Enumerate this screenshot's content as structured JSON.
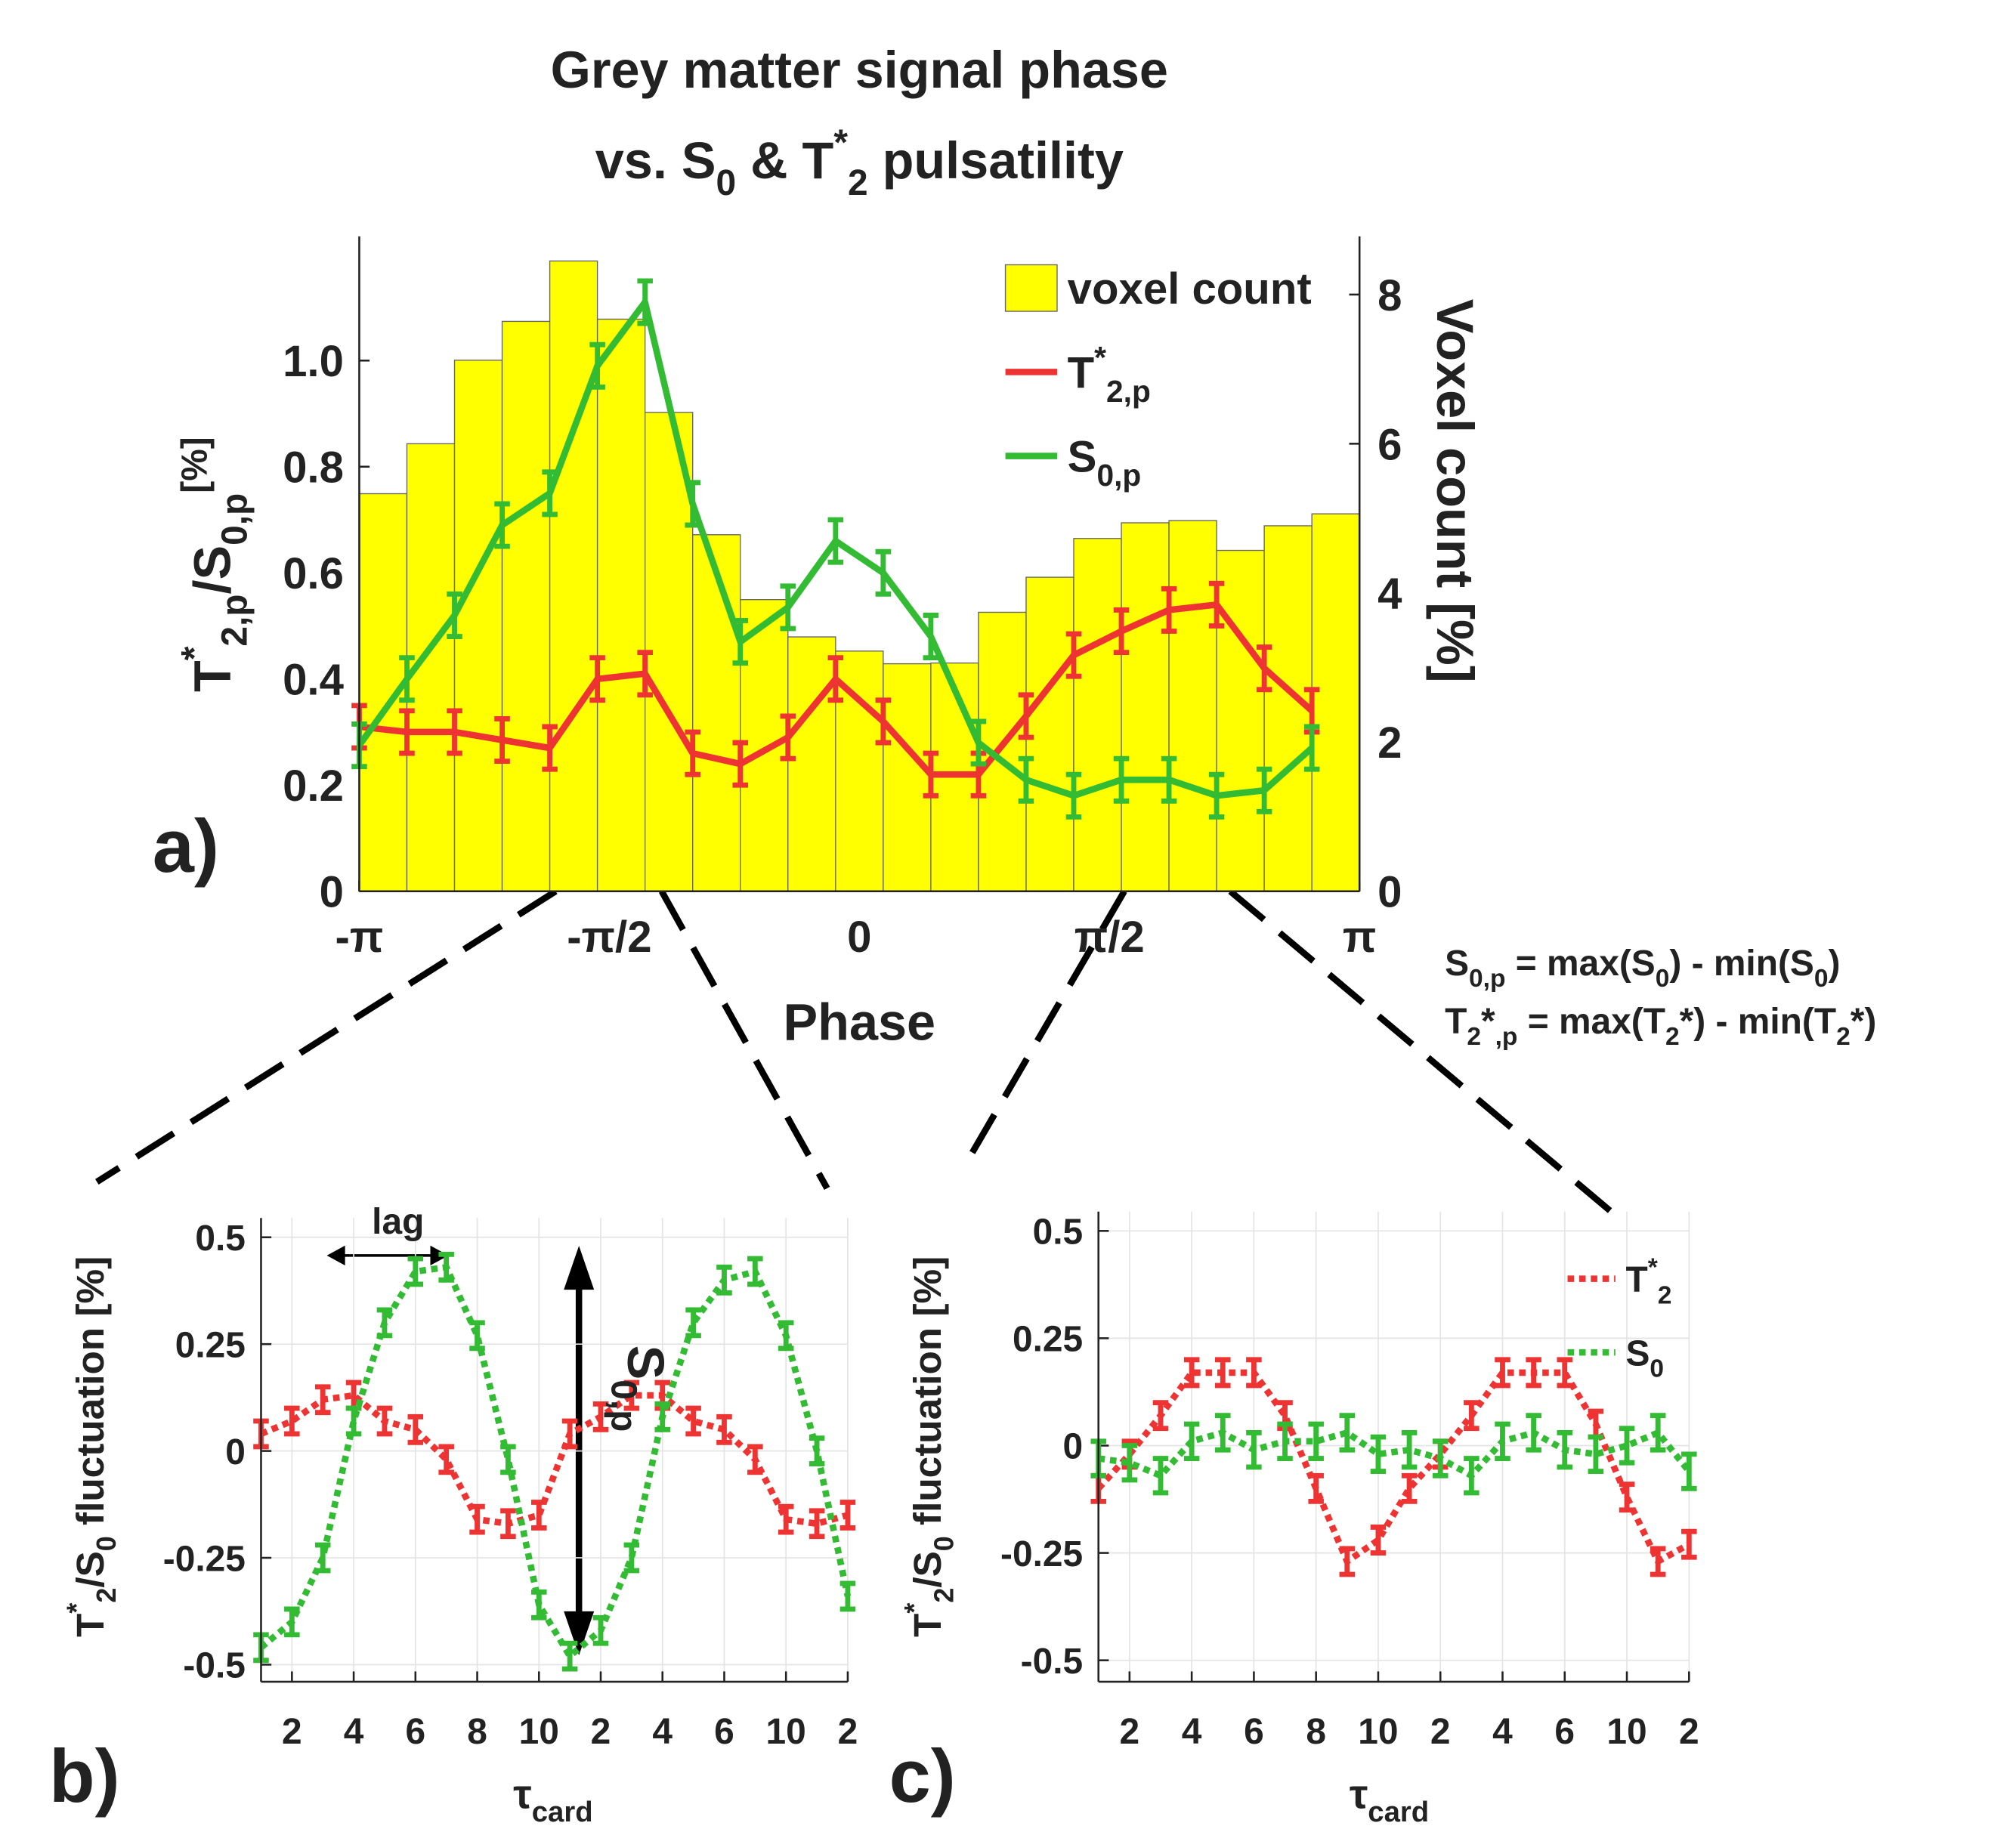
{
  "chart_data": [
    {
      "type": "combo",
      "title": [
        [
          [
            "Grey matter signal phase",
            "normal"
          ]
        ],
        [
          [
            "vs. S",
            "normal"
          ],
          [
            "0",
            "sub"
          ],
          [
            " & T",
            "normal"
          ],
          [
            "*",
            "sup"
          ],
          [
            "2",
            "sub"
          ],
          [
            " pulsatility",
            "normal"
          ]
        ]
      ],
      "panel_label": "a)",
      "x": [
        -3.1416,
        -2.8424,
        -2.5432,
        -2.244,
        -1.9448,
        -1.6456,
        -1.3464,
        -1.0472,
        -0.748,
        -0.4488,
        -0.1496,
        0.1496,
        0.4488,
        0.748,
        1.0472,
        1.3464,
        1.6456,
        1.9448,
        2.244,
        2.5432,
        2.8424
      ],
      "bins": [
        -3.1416,
        -2.8424,
        -2.5432,
        -2.244,
        -1.9448,
        -1.6456,
        -1.3464,
        -1.0472,
        -0.748,
        -0.4488,
        -0.1496,
        0.1496,
        0.4488,
        0.748,
        1.0472,
        1.3464,
        1.6456,
        1.9448,
        2.244,
        2.5432,
        2.8424,
        3.1416
      ],
      "xlim": [
        -3.1416,
        3.1416
      ],
      "xticks": [
        {
          "value": -3.1416,
          "label": "-π"
        },
        {
          "value": -1.5708,
          "label": "-π/2"
        },
        0,
        {
          "value": 1.5708,
          "label": "π/2"
        },
        {
          "value": 3.1416,
          "label": "π"
        }
      ],
      "xlabel": "Phase",
      "ylabel": [
        [
          "T",
          "normal"
        ],
        [
          "*",
          "sup"
        ],
        [
          "2,p",
          "sub"
        ],
        [
          "/S",
          "normal"
        ],
        [
          "0,p",
          "sub"
        ],
        [
          "[%]",
          "sup"
        ]
      ],
      "y2label": "Voxel count [%]",
      "ylim": [
        0,
        1.234
      ],
      "yticks": [
        0,
        0.2,
        0.4,
        0.6,
        0.8,
        {
          "value": 1,
          "label": "1.0"
        }
      ],
      "y2lim": [
        0,
        8.78
      ],
      "y2ticks": [
        0,
        2,
        4,
        6,
        8
      ],
      "grid": false,
      "legend": "upper right",
      "series": [
        {
          "name": "voxel count",
          "type": "bar",
          "axis": "y2",
          "color": "#ffff00",
          "values": [
            5.33,
            6.0,
            7.12,
            7.64,
            8.45,
            7.67,
            6.42,
            4.78,
            3.91,
            3.41,
            3.22,
            3.05,
            3.06,
            3.74,
            4.21,
            4.73,
            4.94,
            4.97,
            4.57,
            4.9,
            5.06
          ]
        },
        {
          "name": [
            [
              "T",
              "normal"
            ],
            [
              "*",
              "sup"
            ],
            [
              "2,p",
              "sub"
            ]
          ],
          "type": "line",
          "color": "#ee3333",
          "values": [
            0.31,
            0.3,
            0.3,
            0.285,
            0.27,
            0.4,
            0.41,
            0.26,
            0.24,
            0.29,
            0.4,
            0.32,
            0.22,
            0.22,
            0.33,
            0.445,
            0.49,
            0.53,
            0.54,
            0.42,
            0.34
          ],
          "errors": [
            0.04,
            0.04,
            0.04,
            0.04,
            0.04,
            0.04,
            0.04,
            0.04,
            0.04,
            0.04,
            0.04,
            0.04,
            0.04,
            0.04,
            0.04,
            0.04,
            0.04,
            0.04,
            0.04,
            0.04,
            0.04
          ]
        },
        {
          "name": [
            [
              "S",
              "normal"
            ],
            [
              "0,p",
              "sub"
            ]
          ],
          "type": "line",
          "color": "#33bb33",
          "values": [
            0.275,
            0.4,
            0.52,
            0.69,
            0.75,
            0.99,
            1.11,
            0.73,
            0.47,
            0.535,
            0.66,
            0.6,
            0.48,
            0.28,
            0.21,
            0.18,
            0.21,
            0.21,
            0.18,
            0.19,
            0.27
          ],
          "errors": [
            0.04,
            0.04,
            0.04,
            0.04,
            0.04,
            0.04,
            0.04,
            0.04,
            0.04,
            0.04,
            0.04,
            0.04,
            0.04,
            0.04,
            0.04,
            0.04,
            0.04,
            0.04,
            0.04,
            0.04,
            0.04
          ]
        }
      ],
      "annotations": [
        {
          "text": [
            [
              "S",
              "normal"
            ],
            [
              "0,p",
              "sub"
            ],
            [
              "  = max(S",
              "normal"
            ],
            [
              "0",
              "sub"
            ],
            [
              ")  - min(S",
              "normal"
            ],
            [
              "0",
              "sub"
            ],
            [
              ")",
              "normal"
            ]
          ]
        },
        {
          "text": [
            [
              "T",
              "normal"
            ],
            [
              "2",
              "sub"
            ],
            [
              "*",
              "normal"
            ],
            [
              ",p",
              "sub"
            ],
            [
              " = max(T",
              "normal"
            ],
            [
              "2",
              "sub"
            ],
            [
              "*) - min(T",
              "normal"
            ],
            [
              "2",
              "sub"
            ],
            [
              "*)",
              "normal"
            ]
          ]
        }
      ]
    },
    {
      "type": "line",
      "panel_label": "b)",
      "x": [
        1,
        2,
        3,
        4,
        5,
        6,
        7,
        8,
        9,
        10,
        11,
        12,
        13,
        14,
        15,
        16,
        17,
        18,
        19,
        20
      ],
      "xlim": [
        1,
        20
      ],
      "xticks": [
        2,
        4,
        6,
        8,
        10,
        {
          "value": 12,
          "label": "2"
        },
        {
          "value": 14,
          "label": "4"
        },
        {
          "value": 16,
          "label": "6"
        },
        {
          "value": 18,
          "label": "10"
        },
        {
          "value": 20,
          "label": "2"
        }
      ],
      "xlabel": [
        [
          "τ",
          "normal"
        ],
        [
          "card",
          "sub"
        ]
      ],
      "ylabel": [
        [
          "T",
          "normal"
        ],
        [
          "*",
          "sup"
        ],
        [
          "2",
          "sub"
        ],
        [
          "/S",
          "normal"
        ],
        [
          "0",
          "sub"
        ],
        [
          " fluctuation [%]",
          "normal"
        ]
      ],
      "ylim": [
        -0.54,
        0.545
      ],
      "yticks": [
        -0.5,
        -0.25,
        0,
        0.25,
        0.5
      ],
      "grid": true,
      "series": [
        {
          "color": "#ee3333",
          "linestyle": "dotted",
          "values": [
            0.04,
            0.07,
            0.12,
            0.13,
            0.07,
            0.05,
            -0.02,
            -0.16,
            -0.17,
            -0.15,
            0.04,
            0.08,
            0.13,
            0.13,
            0.07,
            0.05,
            -0.02,
            -0.16,
            -0.17,
            -0.15
          ],
          "errors": [
            0.03,
            0.03,
            0.03,
            0.03,
            0.03,
            0.03,
            0.03,
            0.03,
            0.03,
            0.03,
            0.03,
            0.03,
            0.03,
            0.03,
            0.03,
            0.03,
            0.03,
            0.03,
            0.03,
            0.03
          ]
        },
        {
          "color": "#33bb33",
          "linestyle": "dotted",
          "values": [
            -0.46,
            -0.4,
            -0.25,
            0.07,
            0.3,
            0.42,
            0.43,
            0.27,
            -0.02,
            -0.36,
            -0.48,
            -0.42,
            -0.25,
            0.08,
            0.3,
            0.4,
            0.42,
            0.27,
            0.0,
            -0.34
          ],
          "errors": [
            0.03,
            0.03,
            0.03,
            0.03,
            0.03,
            0.03,
            0.03,
            0.03,
            0.03,
            0.03,
            0.03,
            0.03,
            0.03,
            0.03,
            0.03,
            0.03,
            0.03,
            0.03,
            0.03,
            0.03
          ]
        }
      ],
      "annotations": [
        {
          "text": "lag"
        },
        {
          "text": [
            [
              "S",
              "normal"
            ],
            [
              "0,p",
              "sub"
            ]
          ]
        }
      ]
    },
    {
      "type": "line",
      "panel_label": "c)",
      "x": [
        1,
        2,
        3,
        4,
        5,
        6,
        7,
        8,
        9,
        10,
        11,
        12,
        13,
        14,
        15,
        16,
        17,
        18,
        19,
        20
      ],
      "xlim": [
        1,
        20
      ],
      "xticks": [
        2,
        4,
        6,
        8,
        10,
        {
          "value": 12,
          "label": "2"
        },
        {
          "value": 14,
          "label": "4"
        },
        {
          "value": 16,
          "label": "6"
        },
        {
          "value": 18,
          "label": "10"
        },
        {
          "value": 20,
          "label": "2"
        }
      ],
      "xlabel": [
        [
          "τ",
          "normal"
        ],
        [
          "card",
          "sub"
        ]
      ],
      "ylabel": [
        [
          "T",
          "normal"
        ],
        [
          "*",
          "sup"
        ],
        [
          "2",
          "sub"
        ],
        [
          "/S",
          "normal"
        ],
        [
          "0",
          "sub"
        ],
        [
          " fluctuation [%]",
          "normal"
        ]
      ],
      "ylim": [
        -0.55,
        0.545
      ],
      "yticks": [
        -0.5,
        -0.25,
        0,
        0.25,
        0.5
      ],
      "grid": true,
      "legend": "upper right",
      "series": [
        {
          "name": [
            [
              "T",
              "normal"
            ],
            [
              "*",
              "sup"
            ],
            [
              "2",
              "sub"
            ]
          ],
          "color": "#ee3333",
          "linestyle": "dotted",
          "values": [
            -0.1,
            -0.02,
            0.07,
            0.17,
            0.17,
            0.17,
            0.07,
            -0.1,
            -0.27,
            -0.22,
            -0.1,
            -0.02,
            0.07,
            0.17,
            0.17,
            0.17,
            0.05,
            -0.12,
            -0.27,
            -0.23
          ],
          "errors": [
            0.03,
            0.03,
            0.03,
            0.03,
            0.03,
            0.03,
            0.03,
            0.03,
            0.03,
            0.03,
            0.03,
            0.03,
            0.03,
            0.03,
            0.03,
            0.03,
            0.03,
            0.03,
            0.03,
            0.03
          ]
        },
        {
          "name": [
            [
              "S",
              "normal"
            ],
            [
              "0",
              "sub"
            ]
          ],
          "color": "#33bb33",
          "linestyle": "dotted",
          "values": [
            -0.03,
            -0.04,
            -0.07,
            0.01,
            0.03,
            -0.01,
            0.01,
            0.01,
            0.03,
            -0.02,
            -0.01,
            -0.03,
            -0.07,
            0.01,
            0.03,
            -0.01,
            -0.02,
            0.0,
            0.03,
            -0.06
          ],
          "errors": [
            0.04,
            0.04,
            0.04,
            0.04,
            0.04,
            0.04,
            0.04,
            0.04,
            0.04,
            0.04,
            0.04,
            0.04,
            0.04,
            0.04,
            0.04,
            0.04,
            0.04,
            0.04,
            0.04,
            0.04
          ]
        }
      ]
    }
  ]
}
